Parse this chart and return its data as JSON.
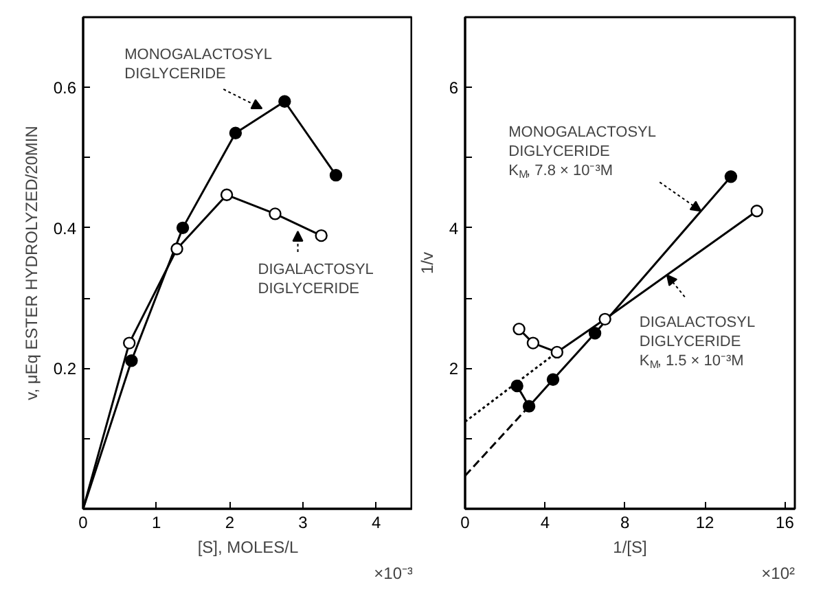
{
  "chart_data": [
    {
      "type": "line",
      "xlabel": "[S], MOLES/L",
      "ylabel": "v, μEq ESTER HYDROLYZED/20MIN",
      "xlim": [
        0,
        4.5
      ],
      "ylim": [
        0,
        0.7
      ],
      "xticks": [
        0,
        1,
        2,
        3,
        4
      ],
      "yticks": [
        {
          "value": 0.1,
          "label": null
        },
        0.2,
        {
          "value": 0.3,
          "label": null
        },
        0.4,
        {
          "value": 0.5,
          "label": null
        },
        0.6
      ],
      "grid": false,
      "series": [
        {
          "color": "#000000",
          "line_style": "solid",
          "x": [
            0,
            0.66,
            1.36,
            2.08,
            2.75,
            3.45
          ],
          "values": [
            0,
            0.211,
            0.4,
            0.535,
            0.58,
            0.475
          ]
        },
        {
          "color": "#000000",
          "line_style": "solid",
          "x": [
            0,
            0.63,
            1.28,
            1.96,
            2.62,
            3.25
          ],
          "values": [
            0,
            0.236,
            0.37,
            0.447,
            0.42,
            0.389
          ]
        },
        {
          "type": "scatter",
          "marker": "circle",
          "color": "#000000",
          "x": [
            0.66,
            1.36,
            2.08,
            2.75,
            3.45
          ],
          "values": [
            0.211,
            0.4,
            0.535,
            0.58,
            0.475
          ]
        },
        {
          "type": "scatter",
          "marker": "circle",
          "color": "#ffffff",
          "x": [
            0.63,
            1.28,
            1.96,
            2.62,
            3.25
          ],
          "values": [
            0.236,
            0.37,
            0.447,
            0.42,
            0.389
          ]
        }
      ],
      "annotations": [
        {
          "text": "MONOGALACTOSYL\nDIGLYCERIDE",
          "x": 2.44,
          "y": 0.57
        },
        {
          "text": "DIGALACTOSYL\nDIGLYCERIDE",
          "x": 2.93,
          "y": 0.395
        },
        "×10⁻³"
      ]
    },
    {
      "type": "line",
      "xlabel": "1/[S]",
      "ylabel": "1/v",
      "xlim": [
        0,
        16.5
      ],
      "ylim": [
        0,
        7
      ],
      "xticks": [
        0,
        4,
        8,
        12,
        16
      ],
      "yticks": [
        {
          "value": 1,
          "label": null
        },
        2,
        {
          "value": 3,
          "label": null
        },
        4,
        {
          "value": 5,
          "label": null
        },
        6
      ],
      "grid": false,
      "series": [
        {
          "color": "#000000",
          "line_style": "solid",
          "x": [
            2.6,
            3.2,
            4.4,
            6.5,
            13.3
          ],
          "values": [
            1.75,
            1.46,
            1.84,
            2.5,
            4.73
          ]
        },
        {
          "color": "#000000",
          "line_style": "solid",
          "x": [
            2.7,
            3.4,
            4.6,
            7.0,
            14.6
          ],
          "values": [
            2.56,
            2.36,
            2.23,
            2.7,
            4.24
          ]
        },
        {
          "color": "#000000",
          "line_style": "dashed",
          "x": [
            0,
            3.2
          ],
          "values": [
            0.47,
            1.46
          ]
        },
        {
          "color": "#000000",
          "line_style": "dotted",
          "x": [
            0,
            4.6
          ],
          "values": [
            1.24,
            2.23
          ]
        },
        {
          "type": "scatter",
          "marker": "circle",
          "color": "#000000",
          "x": [
            2.6,
            3.2,
            4.4,
            6.5,
            13.3
          ],
          "values": [
            1.75,
            1.46,
            1.84,
            2.5,
            4.73
          ]
        },
        {
          "type": "scatter",
          "marker": "circle",
          "color": "#ffffff",
          "x": [
            2.7,
            3.4,
            4.6,
            7.0,
            14.6
          ],
          "values": [
            2.56,
            2.36,
            2.23,
            2.7,
            4.24
          ]
        }
      ],
      "annotations": [
        {
          "text": "MONOGALACTOSYL\nDIGLYCERIDE\nK$_{M}$, 7.8 × 10⁻³M",
          "x": 11.8,
          "y": 4.24
        },
        {
          "text": "DIGALACTOSYL\nDIGLYCERIDE\nK$_{M}$, 1.5 × 10⁻³M",
          "x": 10.1,
          "y": 3.33
        },
        "×10²"
      ]
    }
  ]
}
